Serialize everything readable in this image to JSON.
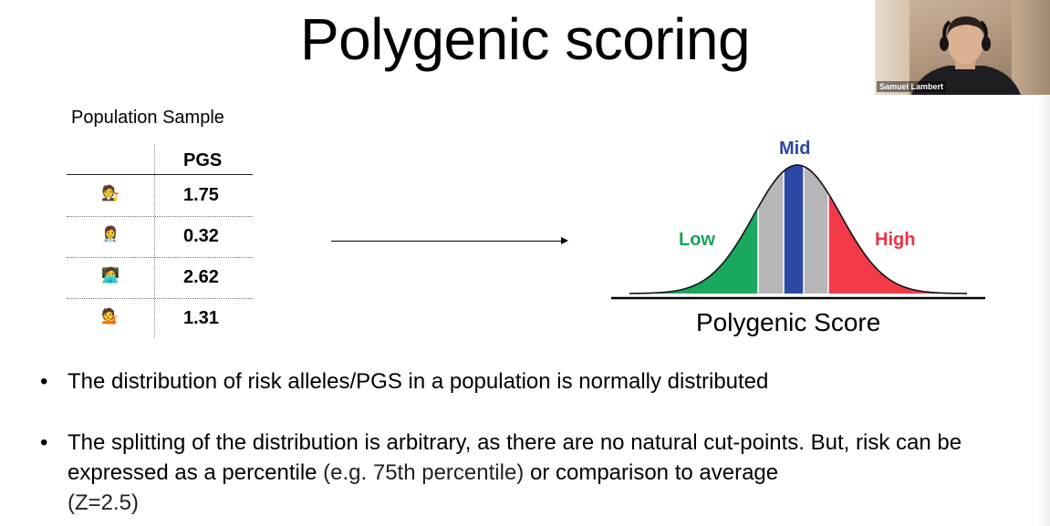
{
  "slide": {
    "title": "Polygenic scoring"
  },
  "video": {
    "participant_name": "Samuel Lambert"
  },
  "table": {
    "caption": "Population Sample",
    "header": "PGS",
    "rows": [
      {
        "person_icon": "🧑‍⚖️",
        "value": "1.75"
      },
      {
        "person_icon": "👩‍⚕️",
        "value": "0.32"
      },
      {
        "person_icon": "🧑‍💻",
        "value": "2.62"
      },
      {
        "person_icon": "💁",
        "value": "1.31"
      }
    ]
  },
  "distribution": {
    "low_label": "Low",
    "mid_label": "Mid",
    "high_label": "High",
    "x_axis_label": "Polygenic Score",
    "colors": {
      "low": "#19a85e",
      "middle": "#b7b7ba",
      "mid": "#2e48a5",
      "high": "#f23a48"
    }
  },
  "bullets": {
    "b1": "The distribution of risk alleles/PGS in a population is normally distributed",
    "b2_part1": "The splitting of the distribution is arbitrary, as there are no natural cut-points. But, risk can be expressed as a percentile",
    "b2_part2": " (e.g. 75th percentile)",
    "b2_part3": " or comparison to average",
    "b2_part4": "(Z=2.5)",
    "marker": "•"
  }
}
